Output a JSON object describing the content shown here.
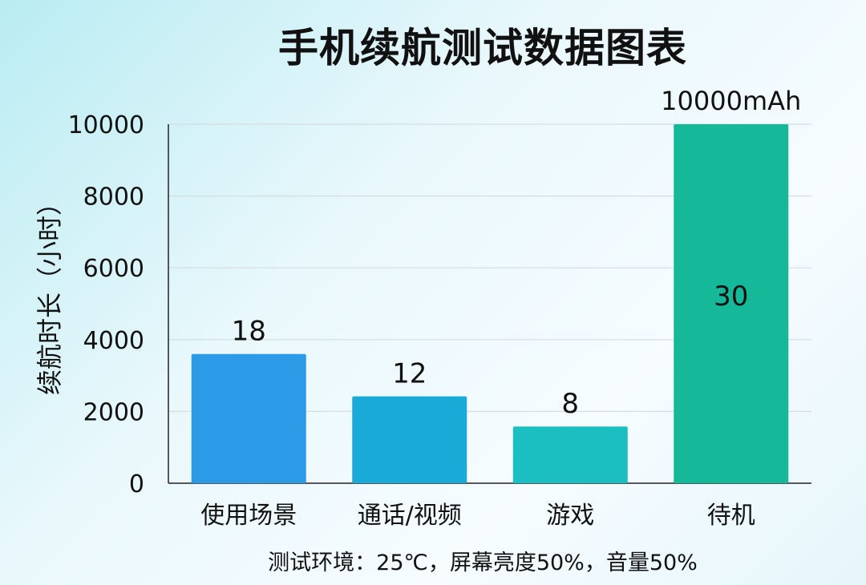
{
  "chart_data": {
    "type": "bar",
    "title": "手机续航测试数据图表",
    "ylabel": "续航时长（小时）",
    "xlabel": "",
    "categories": [
      "使用场景",
      "通话/视频",
      "游戏",
      "待机"
    ],
    "values": [
      3600,
      2420,
      1580,
      10000
    ],
    "bar_labels": [
      "18",
      "12",
      "8",
      "30"
    ],
    "extra_labels": [
      "",
      "",
      "",
      "10000mAh"
    ],
    "yticks": [
      "0",
      "2000",
      "4000",
      "6000",
      "8000",
      "10000"
    ],
    "ylim": [
      0,
      10000
    ],
    "grid": true,
    "bar_colors": [
      "#2b9be8",
      "#19aad8",
      "#1bbfc1",
      "#16b89a"
    ],
    "footnote": "测试环境：25℃，屏幕亮度50%，音量50%"
  }
}
